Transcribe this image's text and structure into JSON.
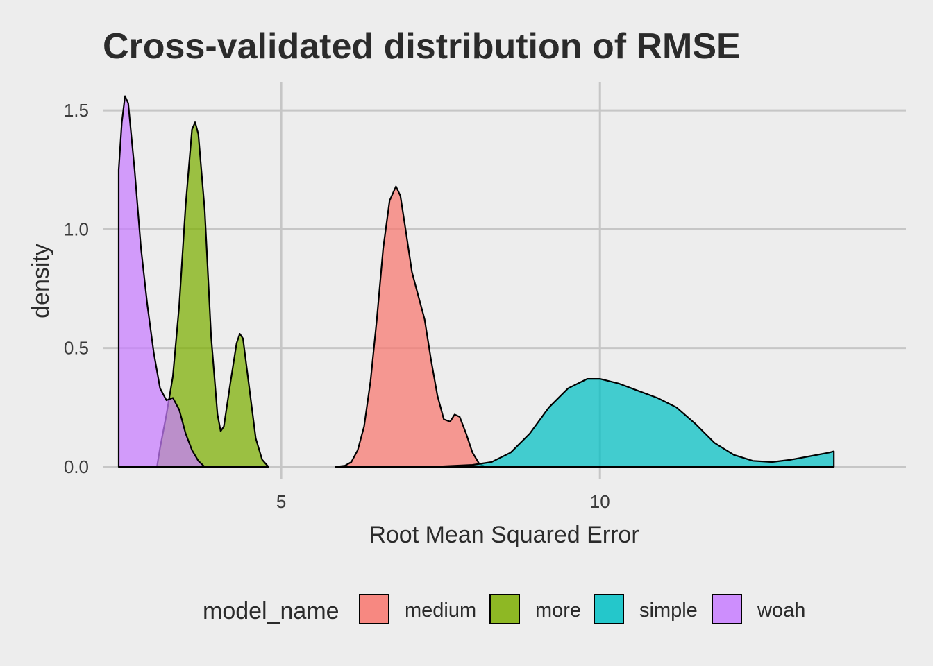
{
  "chart_data": {
    "type": "area",
    "title": "Cross-validated distribution of RMSE",
    "xlabel": "Root Mean Squared Error",
    "ylabel": "density",
    "xlim": [
      2.2,
      14.8
    ],
    "ylim": [
      -0.05,
      1.62
    ],
    "x_ticks": [
      {
        "value": 5,
        "label": "5"
      },
      {
        "value": 10,
        "label": "10"
      }
    ],
    "y_ticks": [
      {
        "value": 0.0,
        "label": "0.0"
      },
      {
        "value": 0.5,
        "label": "0.5"
      },
      {
        "value": 1.0,
        "label": "1.0"
      },
      {
        "value": 1.5,
        "label": "1.5"
      }
    ],
    "grid": true,
    "legend": {
      "title": "model_name",
      "position": "bottom",
      "entries": [
        "medium",
        "more",
        "simple",
        "woah"
      ]
    },
    "series": [
      {
        "name": "medium",
        "color": "#F8766D",
        "points": [
          [
            5.85,
            0.0
          ],
          [
            6.0,
            0.005
          ],
          [
            6.1,
            0.02
          ],
          [
            6.2,
            0.07
          ],
          [
            6.3,
            0.17
          ],
          [
            6.4,
            0.36
          ],
          [
            6.5,
            0.62
          ],
          [
            6.6,
            0.92
          ],
          [
            6.7,
            1.12
          ],
          [
            6.8,
            1.18
          ],
          [
            6.87,
            1.14
          ],
          [
            6.95,
            1.0
          ],
          [
            7.05,
            0.82
          ],
          [
            7.15,
            0.72
          ],
          [
            7.25,
            0.62
          ],
          [
            7.35,
            0.45
          ],
          [
            7.45,
            0.3
          ],
          [
            7.55,
            0.2
          ],
          [
            7.65,
            0.19
          ],
          [
            7.72,
            0.22
          ],
          [
            7.8,
            0.21
          ],
          [
            7.9,
            0.14
          ],
          [
            8.0,
            0.06
          ],
          [
            8.1,
            0.015
          ],
          [
            8.2,
            0.0
          ]
        ]
      },
      {
        "name": "more",
        "color": "#7CAE00",
        "points": [
          [
            3.05,
            0.0
          ],
          [
            3.1,
            0.08
          ],
          [
            3.2,
            0.22
          ],
          [
            3.3,
            0.38
          ],
          [
            3.4,
            0.68
          ],
          [
            3.5,
            1.1
          ],
          [
            3.6,
            1.42
          ],
          [
            3.65,
            1.45
          ],
          [
            3.7,
            1.4
          ],
          [
            3.8,
            1.08
          ],
          [
            3.9,
            0.55
          ],
          [
            4.0,
            0.22
          ],
          [
            4.05,
            0.15
          ],
          [
            4.1,
            0.17
          ],
          [
            4.2,
            0.35
          ],
          [
            4.3,
            0.52
          ],
          [
            4.35,
            0.56
          ],
          [
            4.4,
            0.54
          ],
          [
            4.5,
            0.33
          ],
          [
            4.6,
            0.12
          ],
          [
            4.7,
            0.03
          ],
          [
            4.8,
            0.0
          ]
        ]
      },
      {
        "name": "simple",
        "color": "#00BFC4",
        "points": [
          [
            7.0,
            0.0
          ],
          [
            7.5,
            0.002
          ],
          [
            8.0,
            0.008
          ],
          [
            8.3,
            0.02
          ],
          [
            8.6,
            0.06
          ],
          [
            8.9,
            0.14
          ],
          [
            9.2,
            0.25
          ],
          [
            9.5,
            0.33
          ],
          [
            9.8,
            0.37
          ],
          [
            10.0,
            0.37
          ],
          [
            10.3,
            0.35
          ],
          [
            10.6,
            0.32
          ],
          [
            10.9,
            0.29
          ],
          [
            11.2,
            0.25
          ],
          [
            11.5,
            0.18
          ],
          [
            11.8,
            0.1
          ],
          [
            12.1,
            0.05
          ],
          [
            12.4,
            0.025
          ],
          [
            12.7,
            0.02
          ],
          [
            13.0,
            0.03
          ],
          [
            13.3,
            0.045
          ],
          [
            13.6,
            0.06
          ],
          [
            13.67,
            0.065
          ],
          [
            13.67,
            0.0
          ]
        ]
      },
      {
        "name": "woah",
        "color": "#C77CFF",
        "points": [
          [
            2.45,
            0.0
          ],
          [
            2.45,
            1.25
          ],
          [
            2.5,
            1.45
          ],
          [
            2.55,
            1.56
          ],
          [
            2.6,
            1.53
          ],
          [
            2.7,
            1.25
          ],
          [
            2.8,
            0.92
          ],
          [
            2.9,
            0.68
          ],
          [
            3.0,
            0.48
          ],
          [
            3.1,
            0.33
          ],
          [
            3.2,
            0.28
          ],
          [
            3.3,
            0.29
          ],
          [
            3.4,
            0.24
          ],
          [
            3.5,
            0.14
          ],
          [
            3.6,
            0.07
          ],
          [
            3.7,
            0.025
          ],
          [
            3.8,
            0.0
          ]
        ]
      }
    ]
  }
}
